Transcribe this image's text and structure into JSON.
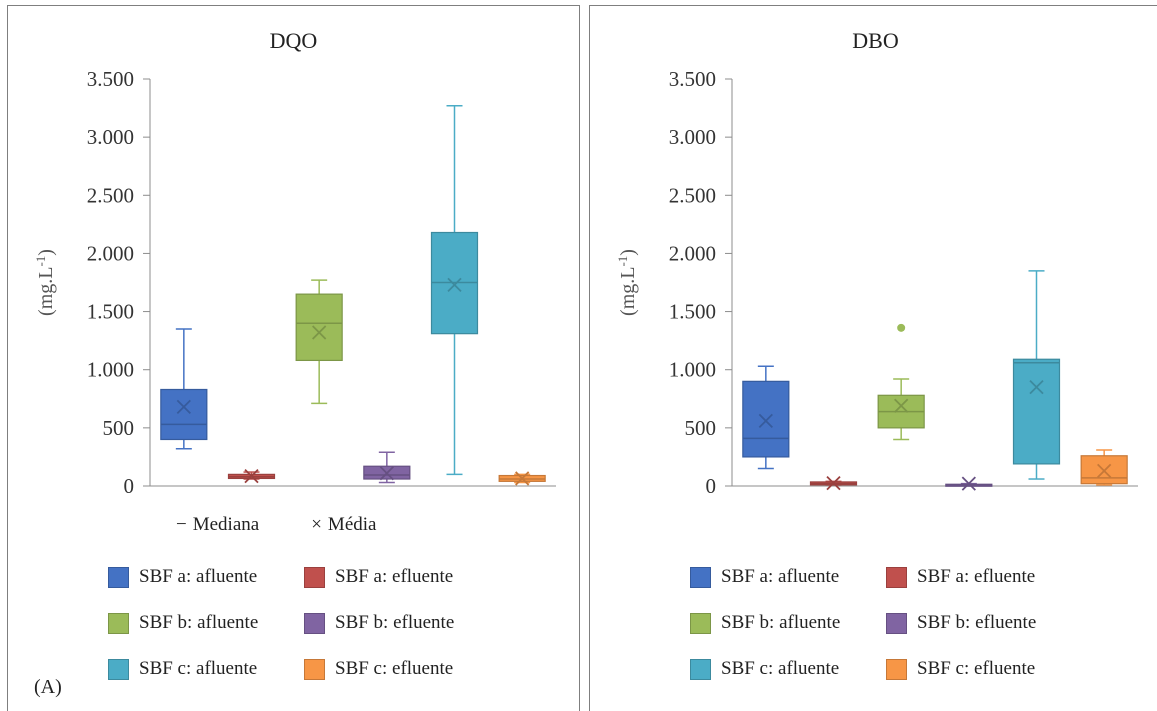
{
  "colors": {
    "a_afl": "#4472c4",
    "a_efl": "#c0504d",
    "b_afl": "#9bbb59",
    "b_efl": "#8064a2",
    "c_afl": "#4bacc6",
    "c_efl": "#f79646"
  },
  "stat_legend": {
    "median_symbol": "−",
    "median_label": "Mediana",
    "mean_symbol": "×",
    "mean_label": "Média"
  },
  "panel_tag": "(A)",
  "chart_data": [
    {
      "type": "box",
      "title": "DQO",
      "ylabel": "(mg.L-1)",
      "ylim": [
        0,
        3500
      ],
      "ytick_labels": [
        "0",
        "500",
        "1.000",
        "1.500",
        "2.000",
        "2.500",
        "3.000",
        "3.500"
      ],
      "ytick_values": [
        0,
        500,
        1000,
        1500,
        2000,
        2500,
        3000,
        3500
      ],
      "series": [
        {
          "name": "SBF a: afluente",
          "color_key": "a_afl",
          "min": 320,
          "q1": 400,
          "median": 530,
          "q3": 830,
          "max": 1350,
          "mean": 680,
          "outliers": []
        },
        {
          "name": "SBF a: efluente",
          "color_key": "a_efl",
          "min": 60,
          "q1": 65,
          "median": 80,
          "q3": 100,
          "max": 120,
          "mean": 85,
          "outliers": []
        },
        {
          "name": "SBF b: afluente",
          "color_key": "b_afl",
          "min": 710,
          "q1": 1080,
          "median": 1400,
          "q3": 1650,
          "max": 1770,
          "mean": 1320,
          "outliers": []
        },
        {
          "name": "SBF b: efluente",
          "color_key": "b_efl",
          "min": 30,
          "q1": 60,
          "median": 95,
          "q3": 170,
          "max": 290,
          "mean": 110,
          "outliers": []
        },
        {
          "name": "SBF c: afluente",
          "color_key": "c_afl",
          "min": 100,
          "q1": 1310,
          "median": 1750,
          "q3": 2180,
          "max": 3270,
          "mean": 1730,
          "outliers": []
        },
        {
          "name": "SBF c: efluente",
          "color_key": "c_efl",
          "min": 30,
          "q1": 40,
          "median": 60,
          "q3": 90,
          "max": 100,
          "mean": 65,
          "outliers": []
        }
      ],
      "legend_entries": [
        "SBF a: afluente",
        "SBF a: efluente",
        "SBF b: afluente",
        "SBF b: efluente",
        "SBF c: afluente",
        "SBF c: efluente"
      ]
    },
    {
      "type": "box",
      "title": "DBO",
      "ylabel": "(mg.L-1)",
      "ylim": [
        0,
        3500
      ],
      "ytick_labels": [
        "0",
        "500",
        "1.000",
        "1.500",
        "2.000",
        "2.500",
        "3.000",
        "3.500"
      ],
      "ytick_values": [
        0,
        500,
        1000,
        1500,
        2000,
        2500,
        3000,
        3500
      ],
      "series": [
        {
          "name": "SBF a: afluente",
          "color_key": "a_afl",
          "min": 150,
          "q1": 250,
          "median": 410,
          "q3": 900,
          "max": 1030,
          "mean": 560,
          "outliers": []
        },
        {
          "name": "SBF a: efluente",
          "color_key": "a_efl",
          "min": 10,
          "q1": 10,
          "median": 20,
          "q3": 35,
          "max": 40,
          "mean": 25,
          "outliers": []
        },
        {
          "name": "SBF b: afluente",
          "color_key": "b_afl",
          "min": 400,
          "q1": 500,
          "median": 640,
          "q3": 780,
          "max": 920,
          "mean": 690,
          "outliers": [
            1360
          ]
        },
        {
          "name": "SBF b: efluente",
          "color_key": "b_efl",
          "min": 5,
          "q1": 5,
          "median": 10,
          "q3": 15,
          "max": 20,
          "mean": 20,
          "outliers": []
        },
        {
          "name": "SBF c: afluente",
          "color_key": "c_afl",
          "min": 60,
          "q1": 190,
          "median": 1060,
          "q3": 1090,
          "max": 1850,
          "mean": 850,
          "outliers": []
        },
        {
          "name": "SBF c: efluente",
          "color_key": "c_efl",
          "min": 10,
          "q1": 20,
          "median": 70,
          "q3": 260,
          "max": 310,
          "mean": 130,
          "outliers": []
        }
      ],
      "legend_entries": [
        "SBF a: afluente",
        "SBF a: efluente",
        "SBF b: afluente",
        "SBF b: efluente",
        "SBF c: afluente",
        "SBF c: efluente"
      ]
    }
  ]
}
